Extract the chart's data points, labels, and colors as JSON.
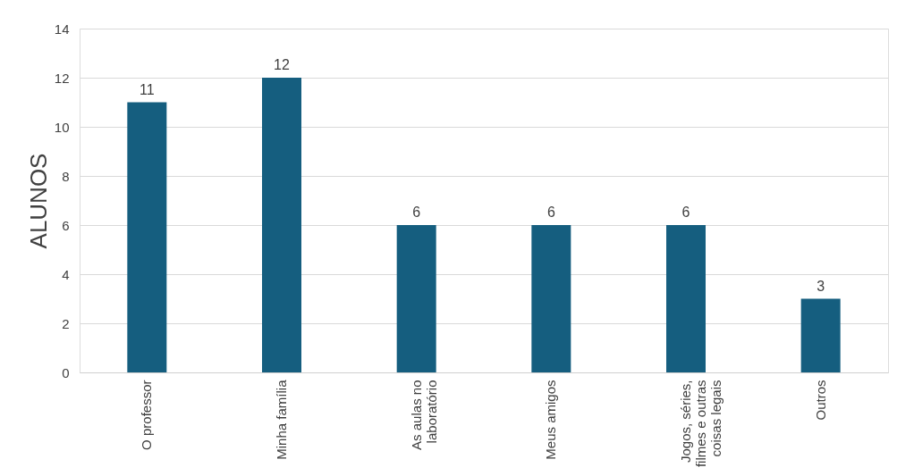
{
  "chart_data": {
    "type": "bar",
    "ylabel": "ALUNOS",
    "categories": [
      "O professor",
      "Minha família",
      "As aulas no laboratório",
      "Meus amigos",
      "Jogos, séries, filmes e outras coisas legais",
      "Outros"
    ],
    "values": [
      11,
      12,
      6,
      6,
      6,
      3
    ],
    "color": "#155e7f",
    "ylim": [
      0,
      14
    ],
    "yticks": [
      0,
      2,
      4,
      6,
      8,
      10,
      12,
      14
    ],
    "grid": "y",
    "data_labels": true
  }
}
